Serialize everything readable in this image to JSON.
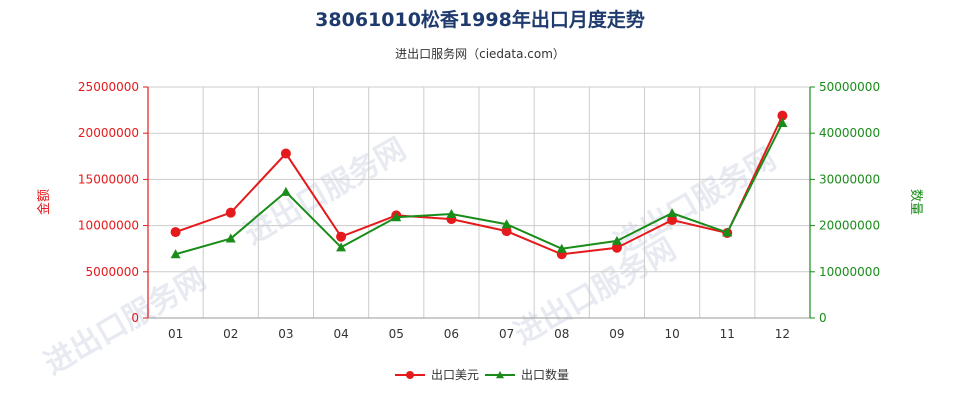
{
  "chart_data": {
    "type": "line",
    "title": "38061010松香1998年出口月度走势",
    "subtitle": "进出口服务网（ciedata.com）",
    "watermark": "进出口服务网",
    "categories": [
      "01",
      "02",
      "03",
      "04",
      "05",
      "06",
      "07",
      "08",
      "09",
      "10",
      "11",
      "12"
    ],
    "y_left": {
      "label": "金额",
      "range": [
        0,
        25000000
      ],
      "ticks": [
        "0",
        "5000000",
        "10000000",
        "15000000",
        "20000000",
        "25000000"
      ],
      "color": "#e41a1c"
    },
    "y_right": {
      "label": "数量",
      "range": [
        0,
        50000000
      ],
      "ticks": [
        "0",
        "10000000",
        "20000000",
        "30000000",
        "40000000",
        "50000000"
      ],
      "color": "#1a8c1a"
    },
    "grid": true,
    "legend_position": "bottom-center",
    "series": [
      {
        "name": "出口美元",
        "axis": "left",
        "color": "#e41a1c",
        "values": [
          9300000,
          11400000,
          17800000,
          8800000,
          11100000,
          10700000,
          9400000,
          6900000,
          7600000,
          10600000,
          9200000,
          21900000
        ]
      },
      {
        "name": "出口数量",
        "axis": "right",
        "color": "#1a8c1a",
        "values": [
          13800000,
          17200000,
          27300000,
          15300000,
          21800000,
          22500000,
          20300000,
          15000000,
          16700000,
          22700000,
          18500000,
          42200000
        ]
      }
    ]
  }
}
